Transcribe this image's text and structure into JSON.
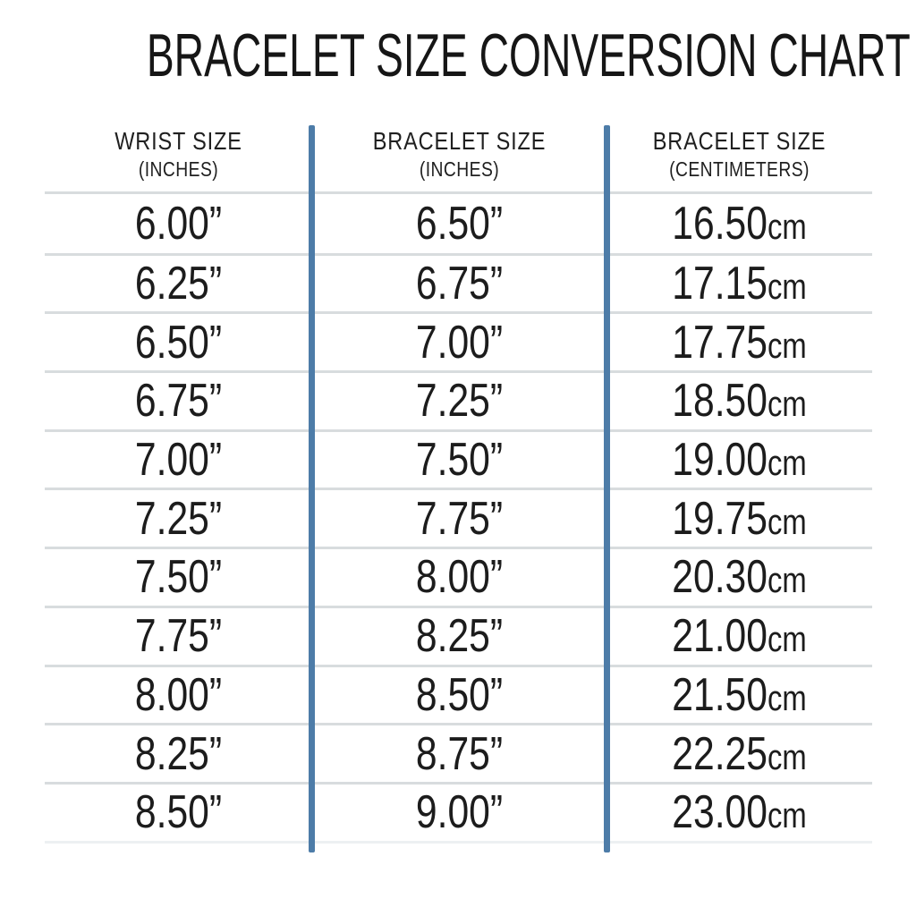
{
  "title": "BRACELET SIZE CONVERSION CHART",
  "units": {
    "inch_mark": "”",
    "cm_label": "cm"
  },
  "colors": {
    "divider_blue": "#4d7ca8",
    "row_line_gray": "#d8dcde",
    "bottom_line_gray": "#edf0f2",
    "text": "#1c1c1c",
    "background": "#ffffff"
  },
  "chart_data": {
    "type": "table",
    "title": "BRACELET SIZE CONVERSION CHART",
    "columns": [
      {
        "label": "WRIST SIZE",
        "sublabel": "(INCHES)"
      },
      {
        "label": "BRACELET SIZE",
        "sublabel": "(INCHES)"
      },
      {
        "label": "BRACELET SIZE",
        "sublabel": "(CENTIMETERS)"
      }
    ],
    "rows": [
      {
        "wrist_inches": "6.00",
        "bracelet_inches": "6.50",
        "bracelet_cm": "16.50"
      },
      {
        "wrist_inches": "6.25",
        "bracelet_inches": "6.75",
        "bracelet_cm": "17.15"
      },
      {
        "wrist_inches": "6.50",
        "bracelet_inches": "7.00",
        "bracelet_cm": "17.75"
      },
      {
        "wrist_inches": "6.75",
        "bracelet_inches": "7.25",
        "bracelet_cm": "18.50"
      },
      {
        "wrist_inches": "7.00",
        "bracelet_inches": "7.50",
        "bracelet_cm": "19.00"
      },
      {
        "wrist_inches": "7.25",
        "bracelet_inches": "7.75",
        "bracelet_cm": "19.75"
      },
      {
        "wrist_inches": "7.50",
        "bracelet_inches": "8.00",
        "bracelet_cm": "20.30"
      },
      {
        "wrist_inches": "7.75",
        "bracelet_inches": "8.25",
        "bracelet_cm": "21.00"
      },
      {
        "wrist_inches": "8.00",
        "bracelet_inches": "8.50",
        "bracelet_cm": "21.50"
      },
      {
        "wrist_inches": "8.25",
        "bracelet_inches": "8.75",
        "bracelet_cm": "22.25"
      },
      {
        "wrist_inches": "8.50",
        "bracelet_inches": "9.00",
        "bracelet_cm": "23.00"
      }
    ]
  }
}
